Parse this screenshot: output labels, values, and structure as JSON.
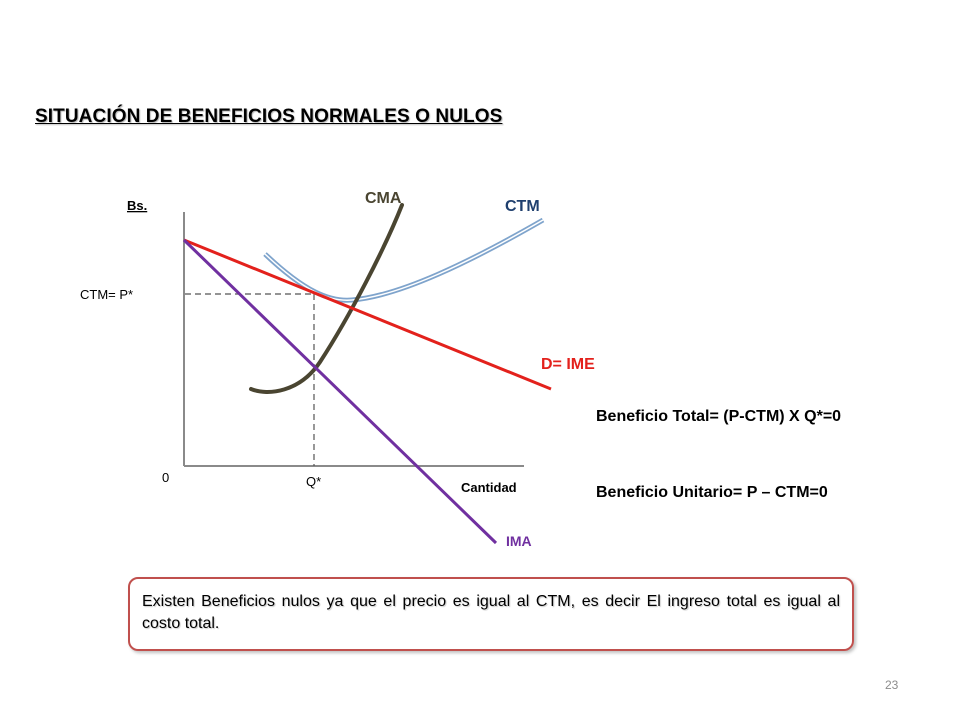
{
  "title": "SITUACIÓN DE BENEFICIOS NORMALES O NULOS",
  "diagram": {
    "y_axis_label": "Bs.",
    "x_axis_label": "Cantidad",
    "origin_label": "0",
    "price_label": "CTM= P*",
    "quantity_label": "Q*",
    "curves": {
      "cma": {
        "label": "CMA",
        "color": "#4a4531"
      },
      "ctm": {
        "label": "CTM",
        "color": "#7fa4cc",
        "label_color": "#1f3f6e"
      },
      "demand": {
        "label": "D= IME",
        "color": "#e3211c",
        "label_color": "#e3211c"
      },
      "ima": {
        "label": "IMA",
        "color": "#7030a0",
        "label_color": "#7030a0"
      }
    }
  },
  "formulas": {
    "total_profit": "Beneficio Total= (P-CTM) X Q*=0",
    "unit_profit": "Beneficio Unitario= P – CTM=0"
  },
  "note": "Existen Beneficios nulos ya que el precio es igual al CTM, es decir El ingreso total es igual al costo total.",
  "page_number": "23"
}
